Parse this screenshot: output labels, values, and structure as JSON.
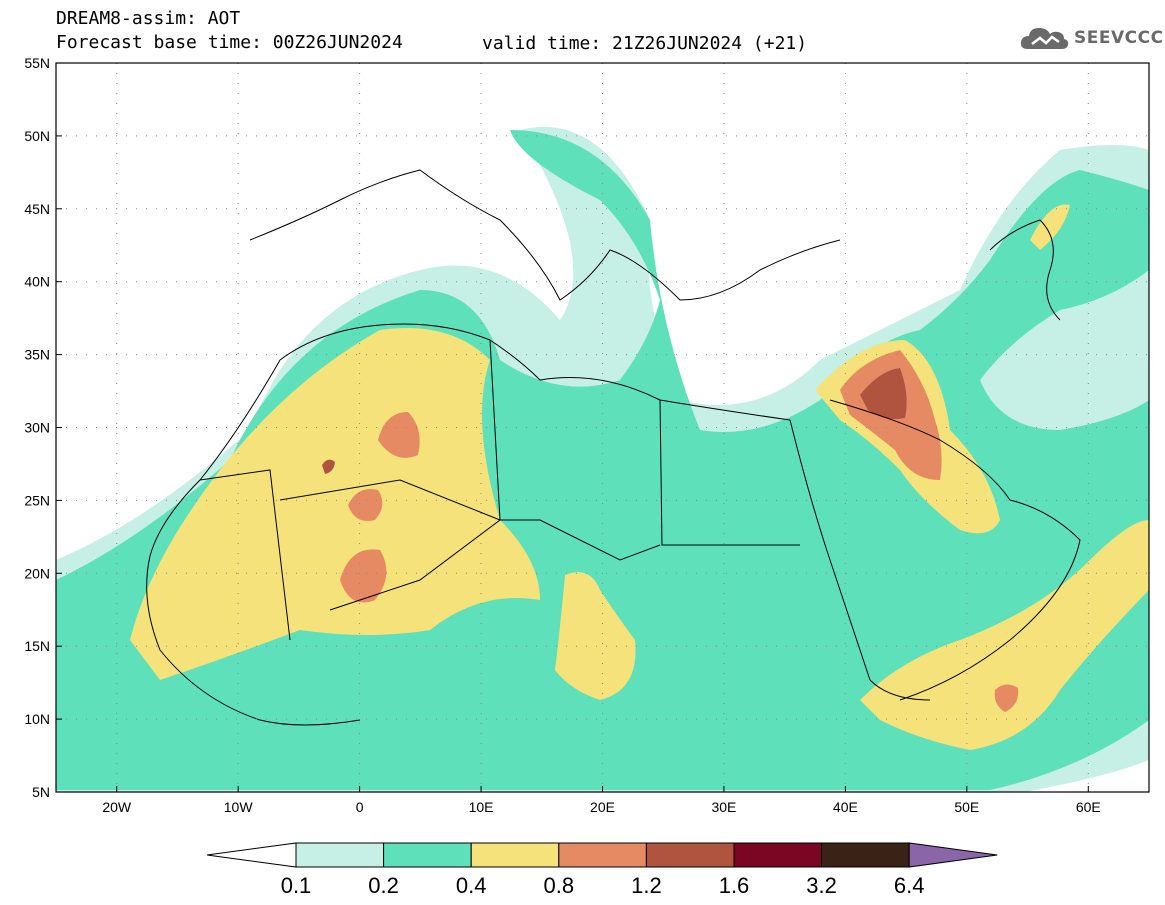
{
  "header": {
    "title": "DREAM8-assim: AOT",
    "base_time": "Forecast base time: 00Z26JUN2024",
    "valid_time": "valid time: 21Z26JUN2024 (+21)"
  },
  "logo": {
    "text": "SEEVCCC",
    "icon": "cloud-icon"
  },
  "map": {
    "lat_labels": [
      "55N",
      "50N",
      "45N",
      "40N",
      "35N",
      "30N",
      "25N",
      "20N",
      "15N",
      "10N",
      "5N"
    ],
    "lon_labels": [
      "20W",
      "10W",
      "0",
      "10E",
      "20E",
      "30E",
      "40E",
      "50E",
      "60E"
    ],
    "lon_range": [
      -25,
      65
    ],
    "lat_range": [
      5,
      55
    ]
  },
  "colorbar": {
    "labels": [
      "0.1",
      "0.2",
      "0.4",
      "0.8",
      "1.2",
      "1.6",
      "3.2",
      "6.4"
    ],
    "colors": [
      "#c6efe5",
      "#5ee0bb",
      "#f5e27a",
      "#e68a63",
      "#b0533f",
      "#7b0624",
      "#3a2316",
      "#8a66a8"
    ]
  },
  "palette": {
    "land_line": "#000000",
    "background": "#ffffff"
  }
}
